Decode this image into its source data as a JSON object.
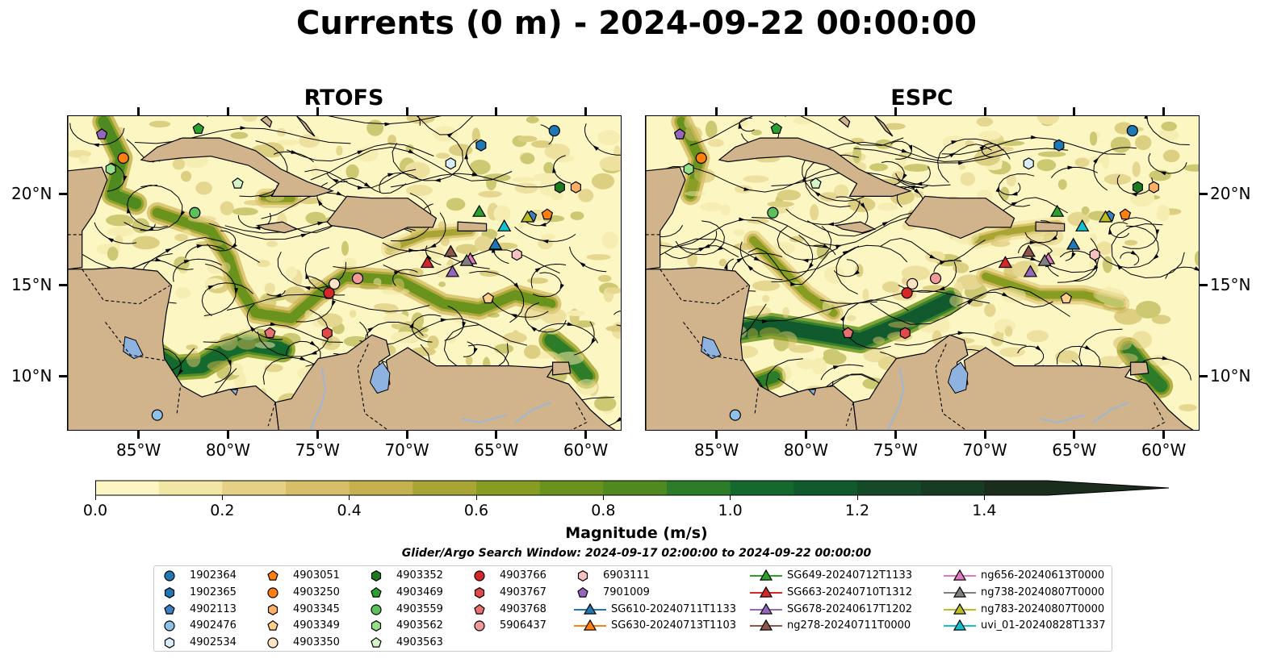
{
  "title": "Currents (0 m) - 2024-09-22 00:00:00",
  "panels": [
    {
      "title": "RTOFS"
    },
    {
      "title": "ESPC"
    }
  ],
  "map": {
    "lon_ticks": [
      "85°W",
      "80°W",
      "75°W",
      "70°W",
      "65°W",
      "60°W"
    ],
    "lat_ticks": [
      "20°N",
      "15°N",
      "10°N"
    ],
    "lon_range": [
      -89,
      -58
    ],
    "lat_range": [
      7,
      24.3
    ],
    "colors": {
      "land": "#d2b48c",
      "water_low": "#fbf6c2",
      "lake": "#8fb3e0"
    }
  },
  "colorbar": {
    "title": "Magnitude (m/s)",
    "ticks": [
      "0.0",
      "0.2",
      "0.4",
      "0.6",
      "0.8",
      "1.0",
      "1.2",
      "1.4"
    ],
    "range": [
      0,
      1.5
    ],
    "colors": [
      "#fbf6c2",
      "#f1e6a4",
      "#e4d186",
      "#d6bf68",
      "#c6b14f",
      "#a8a534",
      "#879d22",
      "#6a931d",
      "#4f8a21",
      "#2c7c2a",
      "#14692f",
      "#115a2e",
      "#154a29",
      "#183b24",
      "#1b2d1c"
    ]
  },
  "search_window": "Glider/Argo Search Window: 2024-09-17 02:00:00 to 2024-09-22 00:00:00",
  "legend": {
    "columns": [
      [
        {
          "label": "1902364",
          "marker": "circle",
          "color": "#1f77b4"
        },
        {
          "label": "1902365",
          "marker": "hexagon",
          "color": "#1f77b4"
        },
        {
          "label": "4902113",
          "marker": "pentagon",
          "color": "#3a7fc1"
        },
        {
          "label": "4902476",
          "marker": "circle",
          "color": "#8fc0e8"
        },
        {
          "label": "4902534",
          "marker": "hexagon",
          "color": "#d8ecfa"
        }
      ],
      [
        {
          "label": "4903051",
          "marker": "pentagon",
          "color": "#ff7f0e"
        },
        {
          "label": "4903250",
          "marker": "circle",
          "color": "#ff7f0e"
        },
        {
          "label": "4903345",
          "marker": "hexagon",
          "color": "#ffb066"
        },
        {
          "label": "4903349",
          "marker": "pentagon",
          "color": "#ffd08a"
        },
        {
          "label": "4903350",
          "marker": "circle",
          "color": "#ffe3c4"
        }
      ],
      [
        {
          "label": "4903352",
          "marker": "hexagon",
          "color": "#1e7a1e"
        },
        {
          "label": "4903469",
          "marker": "pentagon",
          "color": "#2ca02c"
        },
        {
          "label": "4903559",
          "marker": "circle",
          "color": "#5cc15c"
        },
        {
          "label": "4903562",
          "marker": "hexagon",
          "color": "#98df8a"
        },
        {
          "label": "4903563",
          "marker": "pentagon",
          "color": "#d4f5c8"
        }
      ],
      [
        {
          "label": "4903766",
          "marker": "circle",
          "color": "#d62728"
        },
        {
          "label": "4903767",
          "marker": "hexagon",
          "color": "#e04a4a"
        },
        {
          "label": "4903768",
          "marker": "pentagon",
          "color": "#e87070"
        },
        {
          "label": "5906437",
          "marker": "circle",
          "color": "#f29a9a"
        }
      ],
      [
        {
          "label": "6903111",
          "marker": "hexagon",
          "color": "#f8c0c0"
        },
        {
          "label": "7901009",
          "marker": "pentagon",
          "color": "#9467bd"
        },
        {
          "label": "SG610-20240711T1133",
          "marker": "triangle",
          "color": "#1f77b4"
        },
        {
          "label": "SG630-20240713T1103",
          "marker": "triangle",
          "color": "#ff7f0e"
        }
      ],
      [
        {
          "label": "SG649-20240712T1133",
          "marker": "triangle",
          "color": "#2ca02c"
        },
        {
          "label": "SG663-20240710T1312",
          "marker": "triangle",
          "color": "#d62728"
        },
        {
          "label": "SG678-20240617T1202",
          "marker": "triangle",
          "color": "#9467bd"
        },
        {
          "label": "ng278-20240711T0000",
          "marker": "triangle",
          "color": "#8c564b"
        }
      ],
      [
        {
          "label": "ng656-20240613T0000",
          "marker": "triangle",
          "color": "#e377c2"
        },
        {
          "label": "ng738-20240807T0000",
          "marker": "triangle",
          "color": "#7f7f7f"
        },
        {
          "label": "ng783-20240807T0000",
          "marker": "triangle",
          "color": "#bcbd22"
        },
        {
          "label": "uvi_01-20240828T1337",
          "marker": "triangle",
          "color": "#17becf"
        }
      ]
    ]
  },
  "markers": [
    {
      "label": "1902364",
      "lon": -61.8,
      "lat": 23.5
    },
    {
      "label": "1902365",
      "lon": -65.9,
      "lat": 22.7
    },
    {
      "label": "4902113",
      "lon": -63.1,
      "lat": 18.8
    },
    {
      "label": "4902476",
      "lon": -84.0,
      "lat": 7.9
    },
    {
      "label": "4902534",
      "lon": -67.6,
      "lat": 21.7
    },
    {
      "label": "4903051",
      "lon": -62.2,
      "lat": 18.9
    },
    {
      "label": "4903250",
      "lon": -85.9,
      "lat": 22.0
    },
    {
      "label": "4903345",
      "lon": -60.6,
      "lat": 20.4
    },
    {
      "label": "4903349",
      "lon": -65.5,
      "lat": 14.3
    },
    {
      "label": "4903350",
      "lon": -74.1,
      "lat": 15.1
    },
    {
      "label": "4903352",
      "lon": -61.5,
      "lat": 20.4
    },
    {
      "label": "4903469",
      "lon": -81.7,
      "lat": 23.6
    },
    {
      "label": "4903559",
      "lon": -81.9,
      "lat": 19.0
    },
    {
      "label": "4903562",
      "lon": -86.6,
      "lat": 21.4
    },
    {
      "label": "4903563",
      "lon": -79.5,
      "lat": 20.6
    },
    {
      "label": "4903766",
      "lon": -74.4,
      "lat": 14.6
    },
    {
      "label": "4903767",
      "lon": -74.5,
      "lat": 12.4
    },
    {
      "label": "4903768",
      "lon": -77.7,
      "lat": 12.4
    },
    {
      "label": "5906437",
      "lon": -72.8,
      "lat": 15.4
    },
    {
      "label": "6903111",
      "lon": -63.9,
      "lat": 16.7
    },
    {
      "label": "7901009",
      "lon": -87.1,
      "lat": 23.3
    },
    {
      "label": "SG610-20240711T1133",
      "lon": -65.1,
      "lat": 17.2
    },
    {
      "label": "SG649-20240712T1133",
      "lon": -66.0,
      "lat": 19.0
    },
    {
      "label": "SG663-20240710T1312",
      "lon": -68.9,
      "lat": 16.2
    },
    {
      "label": "SG678-20240617T1202",
      "lon": -67.5,
      "lat": 15.7
    },
    {
      "label": "ng278-20240711T0000",
      "lon": -67.6,
      "lat": 16.8
    },
    {
      "label": "ng656-20240613T0000",
      "lon": -66.5,
      "lat": 16.4
    },
    {
      "label": "ng738-20240807T0000",
      "lon": -66.7,
      "lat": 16.3
    },
    {
      "label": "ng783-20240807T0000",
      "lon": -63.3,
      "lat": 18.7
    },
    {
      "label": "uvi_01-20240828T1337",
      "lon": -64.6,
      "lat": 18.2
    }
  ]
}
